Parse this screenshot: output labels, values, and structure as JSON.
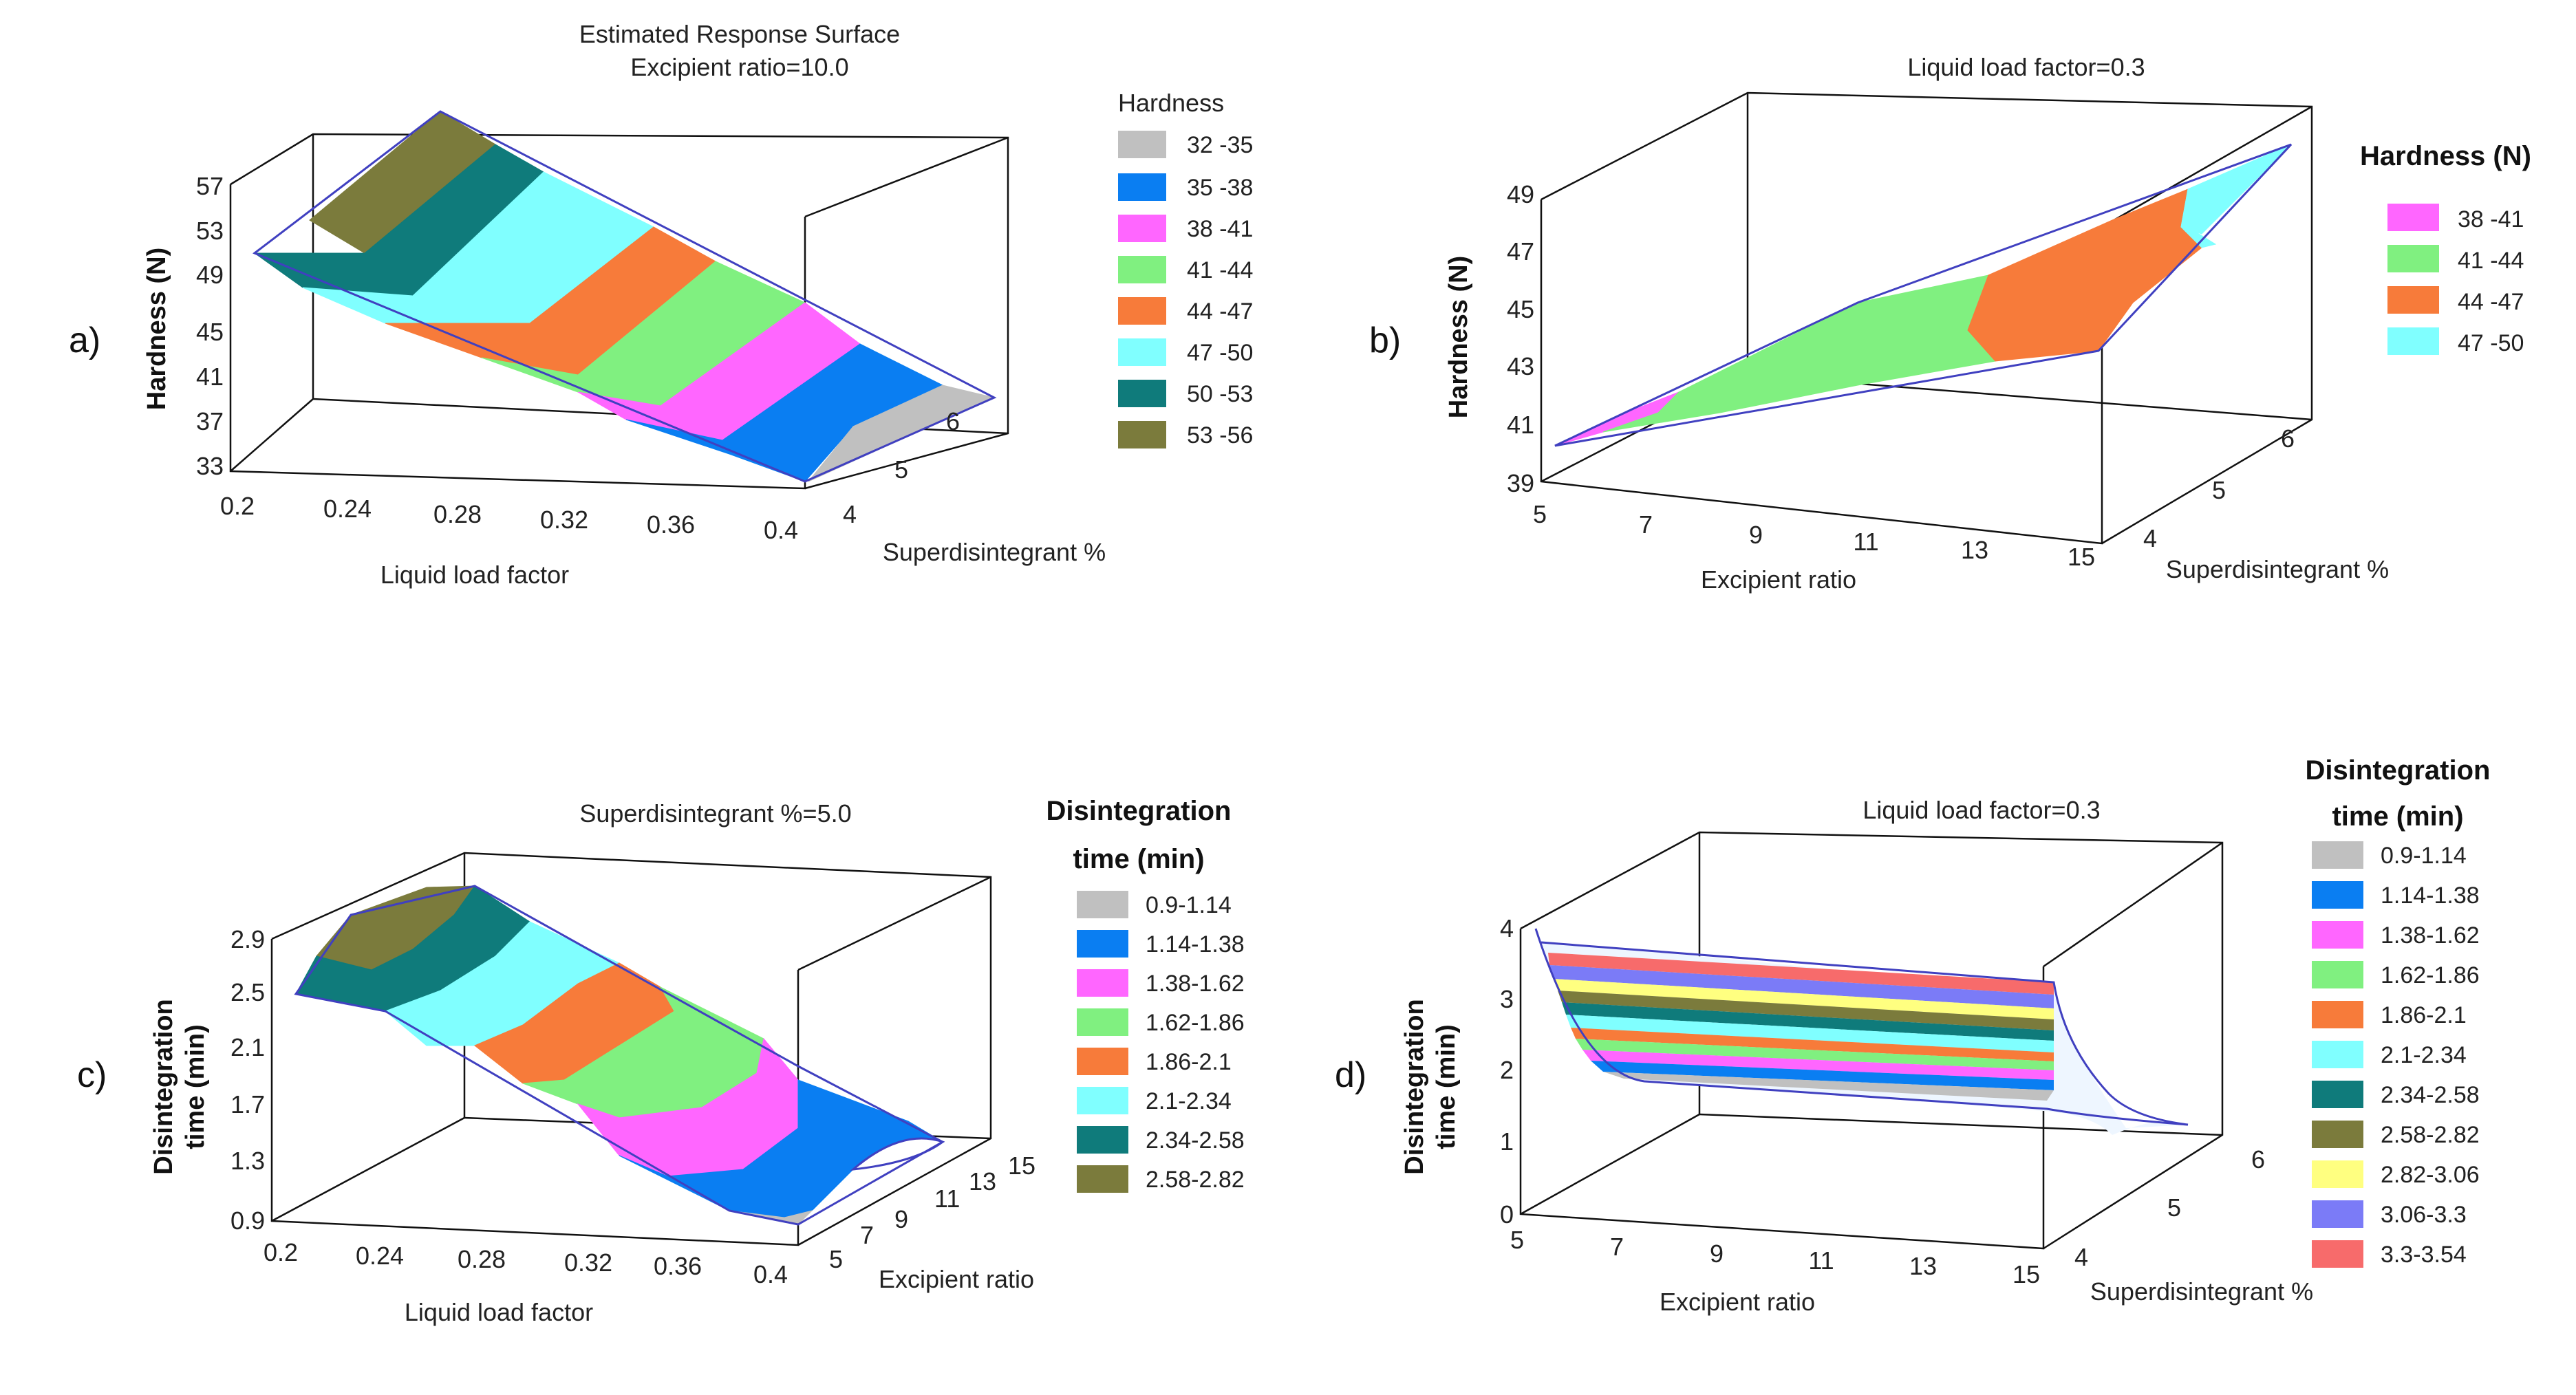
{
  "chart_data": [
    {
      "id": "a",
      "type": "surface",
      "panel_label": "a)",
      "title": "Estimated Response Surface",
      "subtitle": "Excipient ratio=10.0",
      "xlabel": "Liquid load factor",
      "ylabel": "Superdisintegrant %",
      "zlabel": "Hardness (N)",
      "x_ticks": [
        "0.2",
        "0.24",
        "0.28",
        "0.32",
        "0.36",
        "0.4"
      ],
      "y_ticks": [
        "4",
        "5",
        "6"
      ],
      "z_ticks": [
        "33",
        "37",
        "41",
        "45",
        "49",
        "53",
        "57"
      ],
      "xlim": [
        0.2,
        0.4
      ],
      "ylim": [
        3.5,
        6.5
      ],
      "zlim": [
        33,
        57
      ],
      "legend_title": "Hardness",
      "legend": [
        {
          "range": "32 -35",
          "color": "#c0c0c0"
        },
        {
          "range": "35 -38",
          "color": "#0a7ef2"
        },
        {
          "range": "38 -41",
          "color": "#ff66ff"
        },
        {
          "range": "41 -44",
          "color": "#80f080"
        },
        {
          "range": "44 -47",
          "color": "#f77b3a"
        },
        {
          "range": "47 -50",
          "color": "#80ffff"
        },
        {
          "range": "50 -53",
          "color": "#0f7b7b"
        },
        {
          "range": "53 -56",
          "color": "#7b7b3c"
        }
      ]
    },
    {
      "id": "b",
      "type": "surface",
      "panel_label": "b)",
      "title": "",
      "subtitle": "Liquid load factor=0.3",
      "xlabel": "Excipient ratio",
      "ylabel": "Superdisintegrant %",
      "zlabel": "Hardness (N)",
      "x_ticks": [
        "5",
        "7",
        "9",
        "11",
        "13",
        "15"
      ],
      "y_ticks": [
        "4",
        "5",
        "6"
      ],
      "z_ticks": [
        "39",
        "41",
        "43",
        "45",
        "47",
        "49"
      ],
      "xlim": [
        5,
        15
      ],
      "ylim": [
        3.5,
        6.5
      ],
      "zlim": [
        39,
        49
      ],
      "legend_title": "Hardness (N)",
      "legend": [
        {
          "range": "38 -41",
          "color": "#ff66ff"
        },
        {
          "range": "41 -44",
          "color": "#80f080"
        },
        {
          "range": "44 -47",
          "color": "#f77b3a"
        },
        {
          "range": "47 -50",
          "color": "#80ffff"
        }
      ]
    },
    {
      "id": "c",
      "type": "surface",
      "panel_label": "c)",
      "title": "",
      "subtitle": "Superdisintegrant %=5.0",
      "xlabel": "Liquid load factor",
      "ylabel": "Excipient ratio",
      "zlabel_lines": [
        "Disintegration",
        "time (min)"
      ],
      "x_ticks": [
        "0.2",
        "0.24",
        "0.28",
        "0.32",
        "0.36",
        "0.4"
      ],
      "y_ticks": [
        "5",
        "7",
        "9",
        "11",
        "13",
        "15"
      ],
      "z_ticks": [
        "0.9",
        "1.3",
        "1.7",
        "2.1",
        "2.5",
        "2.9"
      ],
      "xlim": [
        0.2,
        0.4
      ],
      "ylim": [
        5,
        15
      ],
      "zlim": [
        0.9,
        2.9
      ],
      "legend_title_lines": [
        "Disintegration",
        "time (min)"
      ],
      "legend": [
        {
          "range": "0.9-1.14",
          "color": "#c0c0c0"
        },
        {
          "range": "1.14-1.38",
          "color": "#0a7ef2"
        },
        {
          "range": "1.38-1.62",
          "color": "#ff66ff"
        },
        {
          "range": "1.62-1.86",
          "color": "#80f080"
        },
        {
          "range": "1.86-2.1",
          "color": "#f77b3a"
        },
        {
          "range": "2.1-2.34",
          "color": "#80ffff"
        },
        {
          "range": "2.34-2.58",
          "color": "#0f7b7b"
        },
        {
          "range": "2.58-2.82",
          "color": "#7b7b3c"
        }
      ]
    },
    {
      "id": "d",
      "type": "surface",
      "panel_label": "d)",
      "title": "",
      "subtitle": "Liquid load factor=0.3",
      "xlabel": "Excipient ratio",
      "ylabel": "Superdisintegrant %",
      "zlabel_lines": [
        "Disintegration",
        "time (min)"
      ],
      "x_ticks": [
        "5",
        "7",
        "9",
        "11",
        "13",
        "15"
      ],
      "y_ticks": [
        "4",
        "5",
        "6"
      ],
      "z_ticks": [
        "0",
        "1",
        "2",
        "3",
        "4"
      ],
      "xlim": [
        5,
        15
      ],
      "ylim": [
        3.5,
        6.5
      ],
      "zlim": [
        0,
        4
      ],
      "legend_title_lines": [
        "Disintegration",
        "time (min)"
      ],
      "legend": [
        {
          "range": "0.9-1.14",
          "color": "#c0c0c0"
        },
        {
          "range": "1.14-1.38",
          "color": "#0a7ef2"
        },
        {
          "range": "1.38-1.62",
          "color": "#ff66ff"
        },
        {
          "range": "1.62-1.86",
          "color": "#80f080"
        },
        {
          "range": "1.86-2.1",
          "color": "#f77b3a"
        },
        {
          "range": "2.1-2.34",
          "color": "#80ffff"
        },
        {
          "range": "2.34-2.58",
          "color": "#0f7b7b"
        },
        {
          "range": "2.58-2.82",
          "color": "#7b7b3c"
        },
        {
          "range": "2.82-3.06",
          "color": "#ffff80"
        },
        {
          "range": "3.06-3.3",
          "color": "#7b7bf7"
        },
        {
          "range": "3.3-3.54",
          "color": "#f76b6b"
        }
      ]
    }
  ]
}
